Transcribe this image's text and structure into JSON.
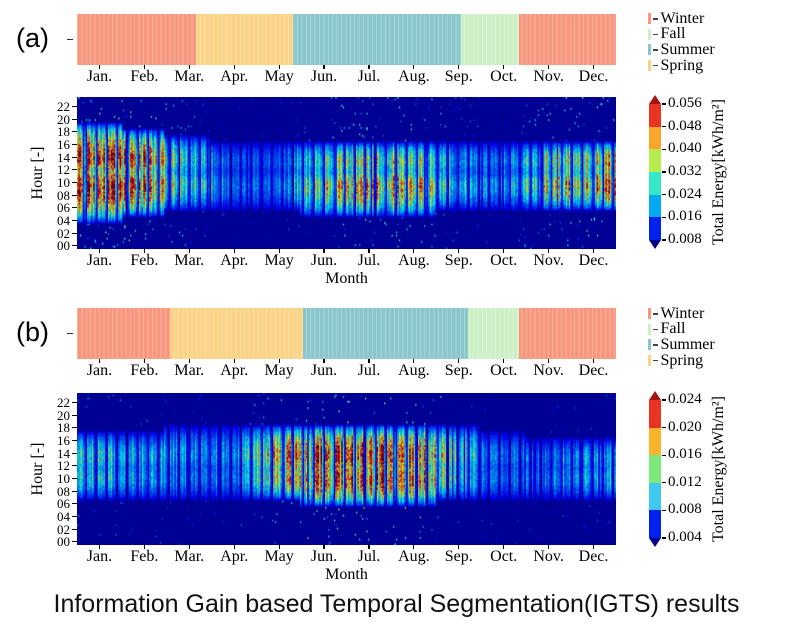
{
  "figure": {
    "caption": "Information Gain based Temporal Segmentation(IGTS) results",
    "background": "#ffffff"
  },
  "legend": {
    "position": "upper right",
    "entries": [
      {
        "label": "Winter",
        "color": "#F8977E"
      },
      {
        "label": "Fall",
        "color": "#CDEFC5"
      },
      {
        "label": "Summer",
        "color": "#8AC6CB"
      },
      {
        "label": "Spring",
        "color": "#FBD386"
      }
    ]
  },
  "chart_data": [
    {
      "type": "heatmap",
      "panel": "(a)",
      "colormap": "jet",
      "grid": false,
      "xlabel": "Month",
      "ylabel": "Hour [-]",
      "x_categories": [
        "Jan.",
        "Feb.",
        "Mar.",
        "Apr.",
        "May",
        "Jun.",
        "Jul.",
        "Aug.",
        "Sep.",
        "Oct.",
        "Nov.",
        "Dec."
      ],
      "y_tick_labels": [
        "00",
        "02",
        "04",
        "06",
        "08",
        "10",
        "12",
        "14",
        "16",
        "18",
        "20",
        "22"
      ],
      "y_range_hours": [
        0,
        24
      ],
      "colorbar": {
        "label": "Total Energy[kWh/m²]",
        "vmin": 0.008,
        "vmax": 0.056,
        "tick_labels_top_to_bottom": [
          "0.056",
          "0.048",
          "0.040",
          "0.032",
          "0.024",
          "0.016",
          "0.008"
        ],
        "segment_colors_bottom_to_top": [
          "#0021EE",
          "#00A9F0",
          "#35E8CB",
          "#B6EC4D",
          "#FAA52C",
          "#E93323"
        ],
        "under_color": "#000089",
        "over_color": "#A31411"
      },
      "seasons_segmentation": [
        {
          "season": "Winter",
          "color": "#F8977E",
          "start_frac": 0.0,
          "end_frac": 0.221
        },
        {
          "season": "Spring",
          "color": "#FBD386",
          "start_frac": 0.221,
          "end_frac": 0.401
        },
        {
          "season": "Summer",
          "color": "#8AC6CB",
          "start_frac": 0.401,
          "end_frac": 0.712
        },
        {
          "season": "Fall",
          "color": "#CDEFC5",
          "start_frac": 0.712,
          "end_frac": 0.82
        },
        {
          "season": "Winter",
          "color": "#F8977E",
          "start_frac": 0.82,
          "end_frac": 1.0
        }
      ],
      "monthly_peak_total_energy_kwh_m2": [
        0.056,
        0.054,
        0.032,
        0.014,
        0.014,
        0.038,
        0.044,
        0.046,
        0.022,
        0.018,
        0.042,
        0.048
      ],
      "daily_active_hours_by_month": [
        [
          4,
          20
        ],
        [
          5,
          19
        ],
        [
          6,
          18
        ],
        [
          6,
          17
        ],
        [
          6,
          17
        ],
        [
          5,
          17
        ],
        [
          5,
          17
        ],
        [
          5,
          17
        ],
        [
          6,
          17
        ],
        [
          6,
          17
        ],
        [
          6,
          17
        ],
        [
          6,
          17
        ]
      ],
      "render": {
        "seed": 11,
        "midday_dip": 0.38,
        "weekend_drop": [
          0.45,
          0.15
        ],
        "speckle": 0.03
      }
    },
    {
      "type": "heatmap",
      "panel": "(b)",
      "colormap": "jet",
      "grid": false,
      "xlabel": "Month",
      "ylabel": "Hour [-]",
      "x_categories": [
        "Jan.",
        "Feb.",
        "Mar.",
        "Apr.",
        "May",
        "Jun.",
        "Jul.",
        "Aug.",
        "Sep.",
        "Oct.",
        "Nov.",
        "Dec."
      ],
      "y_tick_labels": [
        "00",
        "02",
        "04",
        "06",
        "08",
        "10",
        "12",
        "14",
        "16",
        "18",
        "20",
        "22"
      ],
      "y_range_hours": [
        0,
        24
      ],
      "colorbar": {
        "label": "Total Energy[kWh/m²]",
        "vmin": 0.004,
        "vmax": 0.024,
        "tick_labels_top_to_bottom": [
          "0.024",
          "0.020",
          "0.016",
          "0.012",
          "0.008",
          "0.004"
        ],
        "segment_colors_bottom_to_top": [
          "#0021EE",
          "#3FC9F0",
          "#7DE87C",
          "#FBB32B",
          "#E93323"
        ],
        "under_color": "#000089",
        "over_color": "#A31411"
      },
      "seasons_segmentation": [
        {
          "season": "Winter",
          "color": "#F8977E",
          "start_frac": 0.0,
          "end_frac": 0.173
        },
        {
          "season": "Spring",
          "color": "#FBD386",
          "start_frac": 0.173,
          "end_frac": 0.419
        },
        {
          "season": "Summer",
          "color": "#8AC6CB",
          "start_frac": 0.419,
          "end_frac": 0.726
        },
        {
          "season": "Fall",
          "color": "#CDEFC5",
          "start_frac": 0.726,
          "end_frac": 0.82
        },
        {
          "season": "Winter",
          "color": "#F8977E",
          "start_frac": 0.82,
          "end_frac": 1.0
        }
      ],
      "monthly_peak_total_energy_kwh_m2": [
        0.011,
        0.01,
        0.007,
        0.007,
        0.018,
        0.023,
        0.024,
        0.024,
        0.012,
        0.006,
        0.007,
        0.009
      ],
      "daily_active_hours_by_month": [
        [
          7,
          18
        ],
        [
          7,
          18
        ],
        [
          7,
          19
        ],
        [
          7,
          19
        ],
        [
          7,
          19
        ],
        [
          6,
          19
        ],
        [
          6,
          19
        ],
        [
          6,
          19
        ],
        [
          7,
          19
        ],
        [
          7,
          18
        ],
        [
          7,
          17
        ],
        [
          7,
          17
        ]
      ],
      "render": {
        "seed": 29,
        "midday_dip": 0.26,
        "weekend_drop": [
          0.4,
          0.12
        ],
        "speckle": 0.02
      }
    }
  ]
}
